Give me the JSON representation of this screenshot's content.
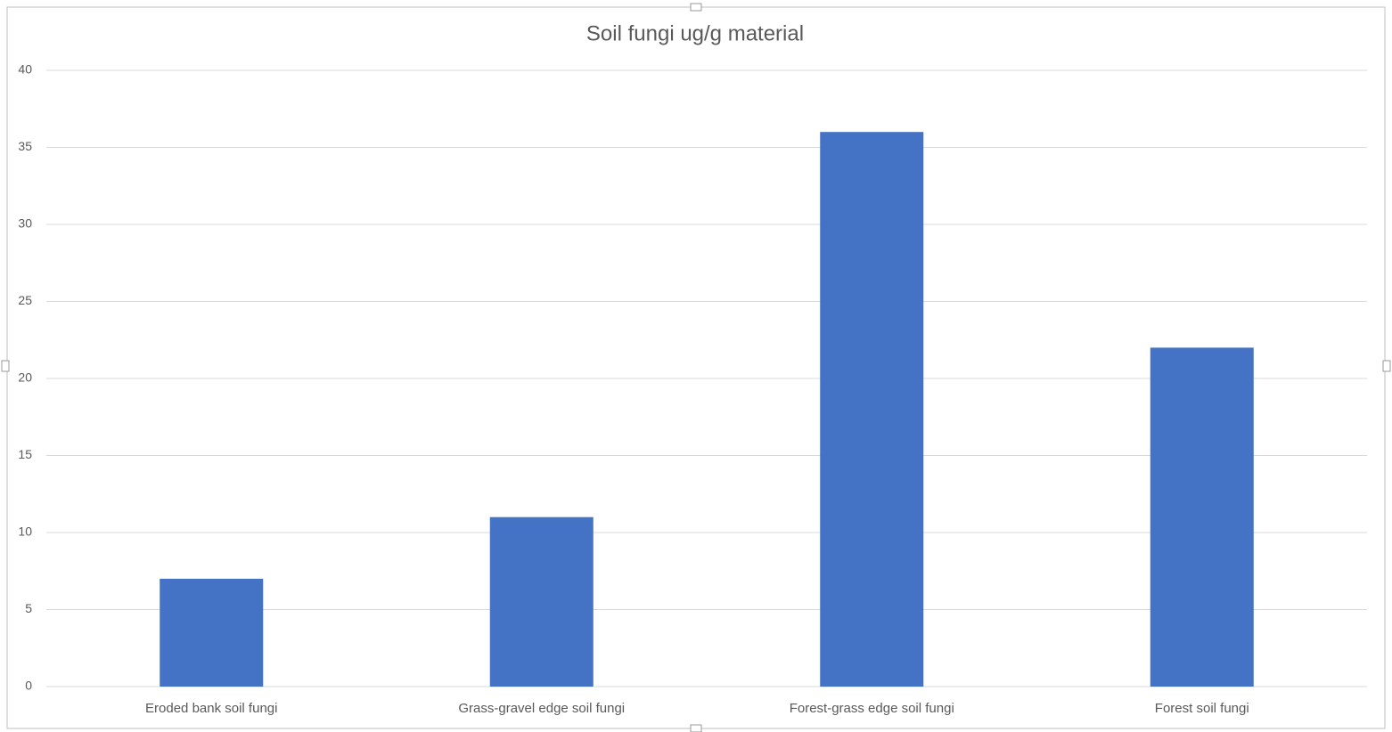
{
  "chart_data": {
    "type": "bar",
    "title": "Soil fungi ug/g material",
    "categories": [
      "Eroded bank soil fungi",
      "Grass-gravel edge soil fungi",
      "Forest-grass edge soil fungi",
      "Forest soil fungi"
    ],
    "values": [
      7,
      11,
      36,
      22
    ],
    "color": "#4472c4",
    "ylim": [
      0,
      40
    ],
    "yticks": [
      0,
      5,
      10,
      15,
      20,
      25,
      30,
      35,
      40
    ],
    "grid": true
  }
}
